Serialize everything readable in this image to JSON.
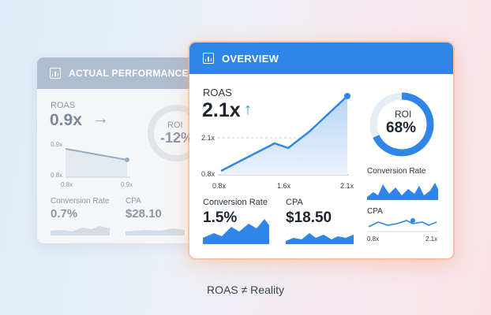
{
  "back_card": {
    "title": "ACTUAL PERFORMANCE",
    "roas_label": "ROAS",
    "roas_value": "0.9x",
    "trend_arrow": "→",
    "roi_label": "ROI",
    "roi_value": "-12%",
    "chart_y_top": "0.9x",
    "chart_y_bottom": "0.8x",
    "chart_x_left": "0.8x",
    "chart_x_right": "0.9x",
    "conversion_label": "Conversion Rate",
    "conversion_value": "0.7%",
    "cpa_label": "CPA",
    "cpa_value": "$28.10"
  },
  "front_card": {
    "title": "OVERVIEW",
    "roas_label": "ROAS",
    "roas_value": "2.1x",
    "trend_arrow": "↑",
    "roi_label": "ROI",
    "roi_value": "68%",
    "roi_fraction": 0.68,
    "chart_y_top": "2.1x",
    "chart_y_bottom": "0.8x",
    "chart_x_labels": [
      "0.8x",
      "1.6x",
      "2.1x"
    ],
    "conversion_label": "Conversion Rate",
    "conversion_value": "1.5%",
    "cpa_label": "CPA",
    "cpa_value": "$18.50",
    "right_conversion_label": "Conversion Rate",
    "right_cpa_label": "CPA",
    "cpa_axis_left": "0.8x",
    "cpa_axis_right": "2.1x"
  },
  "caption": "ROAS ≠ Reality",
  "colors": {
    "accent": "#2f86e6",
    "back_header": "#aebdd0",
    "highlight_glow": "#ffaa78"
  },
  "icons": [
    "bar-chart-icon",
    "arrow-right-icon",
    "arrow-up-icon"
  ]
}
